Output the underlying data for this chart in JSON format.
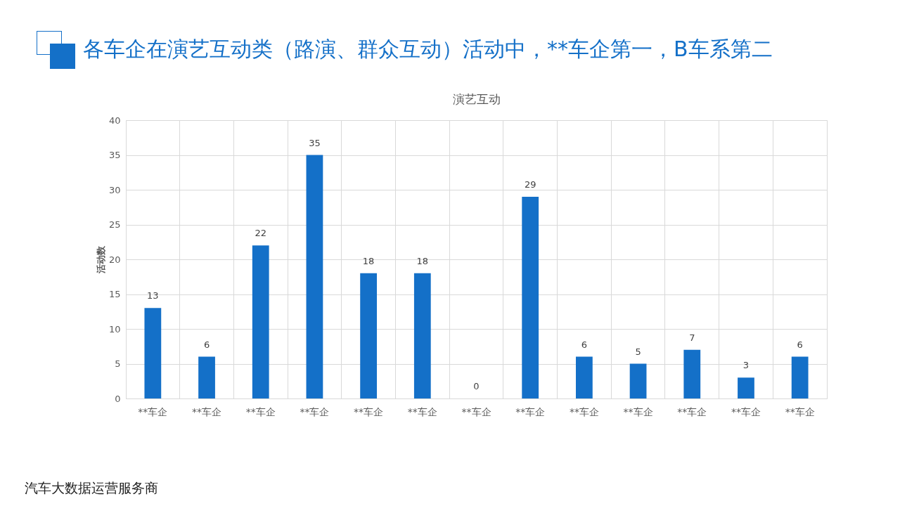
{
  "chart_data": {
    "type": "bar",
    "title": "演艺互动",
    "subtitle": "各车企在演艺互动类（路演、群众互动）活动中，**车企第一，B车系第二",
    "ylabel": "活动数",
    "categories": [
      "**车企",
      "**车企",
      "**车企",
      "**车企",
      "**车企",
      "**车企",
      "**车企",
      "**车企",
      "**车企",
      "**车企",
      "**车企",
      "**车企",
      "**车企"
    ],
    "values": [
      13,
      6,
      22,
      35,
      18,
      18,
      0,
      29,
      6,
      5,
      7,
      3,
      6
    ],
    "color": "#1470c8",
    "ylim": [
      0,
      40
    ],
    "yticks": [
      0,
      5,
      10,
      15,
      20,
      25,
      30,
      35,
      40
    ],
    "grid": true,
    "data_labels": true,
    "annotations": [
      "汽车大数据运营服务商"
    ]
  }
}
